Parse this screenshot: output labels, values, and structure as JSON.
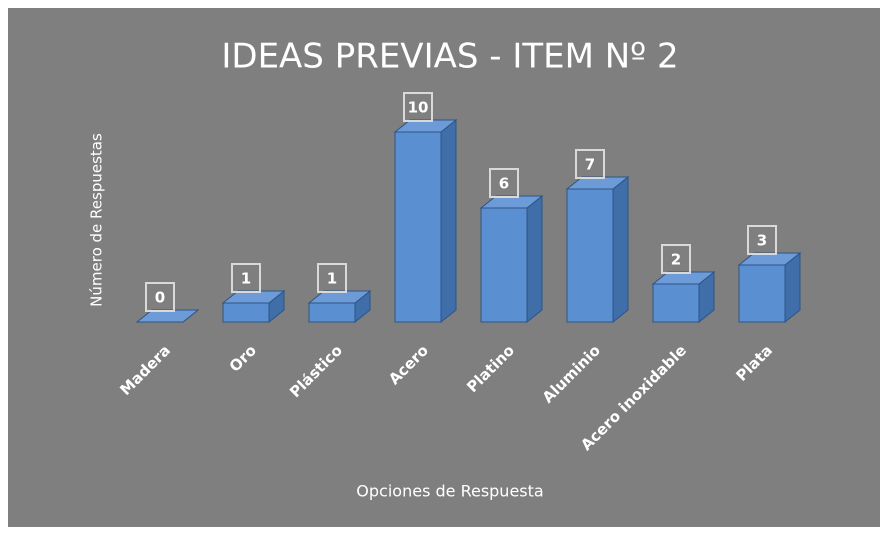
{
  "chart_data": {
    "type": "bar3d",
    "title": "IDEAS PREVIAS - ITEM Nº 2",
    "y_label": "Número de Respuestas",
    "x_label": "Opciones de Respuesta",
    "categories": [
      "Madera",
      "Oro",
      "Plástico",
      "Acero",
      "Platino",
      "Aluminio",
      "Acero inoxidable",
      "Plata"
    ],
    "values": [
      0,
      1,
      1,
      10,
      6,
      7,
      2,
      3
    ],
    "color": "#5a8fd2",
    "ylim": [
      0,
      10
    ]
  }
}
